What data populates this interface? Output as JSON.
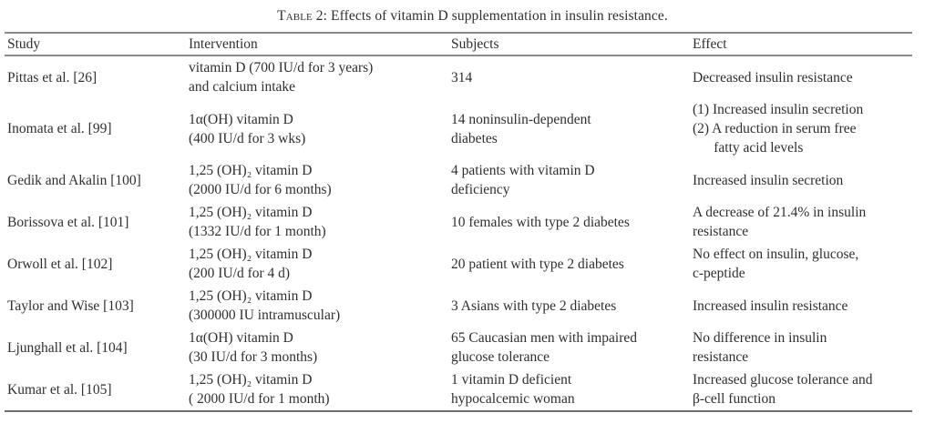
{
  "caption": {
    "label": "Table 2",
    "separator": ": ",
    "text": "Effects of vitamin D supplementation in insulin resistance."
  },
  "table": {
    "columns": [
      "Study",
      "Intervention",
      "Subjects",
      "Effect"
    ],
    "rows": [
      {
        "study": "Pittas et al. [26]",
        "intervention": "vitamin D (700 IU/d for 3 years)\nand calcium intake",
        "subjects": "314",
        "effect": "Decreased insulin resistance"
      },
      {
        "study": "Inomata et al. [99]",
        "intervention": "1α(OH) vitamin D\n(400 IU/d for 3 wks)",
        "subjects": "14 noninsulin-dependent\ndiabetes",
        "effect": "(1) Increased insulin secretion\n(2) A reduction in serum free\n      fatty acid levels"
      },
      {
        "study": "Gedik and Akalin [100]",
        "intervention": "1,25 (OH)₂ vitamin D\n(2000 IU/d for 6 months)",
        "subjects": "4 patients with vitamin D\ndeficiency",
        "effect": "Increased insulin secretion"
      },
      {
        "study": "Borissova et al. [101]",
        "intervention": "1,25 (OH)₂ vitamin D\n(1332 IU/d for 1 month)",
        "subjects": "10 females with type 2 diabetes",
        "effect": "A decrease of 21.4% in insulin\nresistance"
      },
      {
        "study": "Orwoll et al. [102]",
        "intervention": "1,25 (OH)₂ vitamin D\n(200 IU/d for 4 d)",
        "subjects": "20 patient with type 2 diabetes",
        "effect": "No effect on insulin, glucose,\nc-peptide"
      },
      {
        "study": "Taylor and Wise [103]",
        "intervention": "1,25 (OH)₂ vitamin D\n(300000 IU intramuscular)",
        "subjects": "3 Asians with type 2 diabetes",
        "effect": "Increased insulin resistance"
      },
      {
        "study": "Ljunghall et al. [104]",
        "intervention": "1α(OH) vitamin D\n(30 IU/d for 3 months)",
        "subjects": "65 Caucasian men with impaired\nglucose tolerance",
        "effect": "No difference in insulin\nresistance"
      },
      {
        "study": "Kumar et al. [105]",
        "intervention": "1,25 (OH)₂ vitamin D\n( 2000 IU/d for 1 month)",
        "subjects": "1 vitamin D deficient\nhypocalcemic woman",
        "effect": "Increased glucose tolerance and\nβ-cell function"
      }
    ]
  }
}
